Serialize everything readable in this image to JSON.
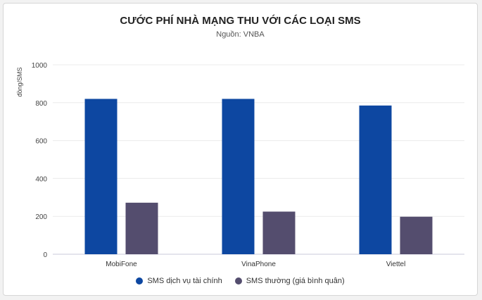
{
  "chart_data": {
    "type": "bar",
    "title": "CƯỚC PHÍ NHÀ MẠNG THU VỚI CÁC LOẠI SMS",
    "subtitle": "Nguồn: VNBA",
    "xlabel": "",
    "ylabel": "đồng/SMS",
    "ylim": [
      0,
      1000
    ],
    "yticks": [
      0,
      200,
      400,
      600,
      800,
      1000
    ],
    "categories": [
      "MobiFone",
      "VinaPhone",
      "Viettel"
    ],
    "series": [
      {
        "name": "SMS dịch vụ tài chính",
        "color": "#0d47a1",
        "values": [
          820,
          820,
          785
        ]
      },
      {
        "name": "SMS thường (giá bình quân)",
        "color": "#544d6e",
        "values": [
          272,
          225,
          198
        ]
      }
    ],
    "grid": true,
    "legend_position": "bottom"
  }
}
